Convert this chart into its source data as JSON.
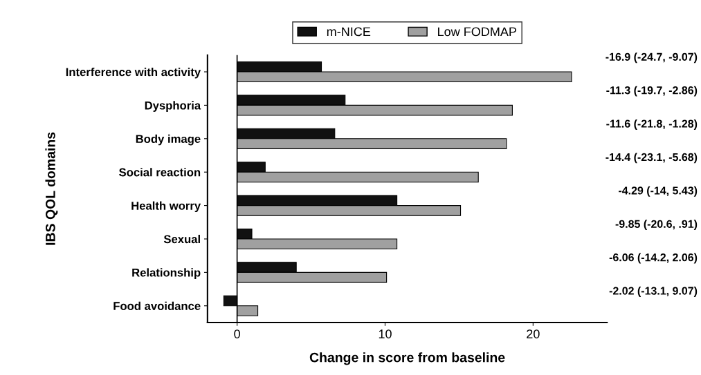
{
  "chart_data": {
    "type": "bar",
    "orientation": "horizontal",
    "xlabel": "Change in score from baseline",
    "ylabel": "IBS QOL domains",
    "categories": [
      "Interference with activity",
      "Dysphoria",
      "Body image",
      "Social reaction",
      "Health worry",
      "Sexual",
      "Relationship",
      "Food avoidance"
    ],
    "series": [
      {
        "name": "m-NICE",
        "color": "#111111",
        "values": [
          5.7,
          7.3,
          6.6,
          1.9,
          10.8,
          1.0,
          4.0,
          -0.9
        ]
      },
      {
        "name": "Low FODMAP",
        "color": "#a0a0a0",
        "values": [
          22.6,
          18.6,
          18.2,
          16.3,
          15.1,
          10.8,
          10.1,
          1.4
        ]
      }
    ],
    "ref_lines": [
      {
        "axis": "x",
        "value": 0,
        "color": "#000000",
        "line_style": "solid"
      }
    ],
    "xlim": [
      -2,
      25
    ],
    "xticks": [
      0,
      10,
      20
    ],
    "grid": false,
    "legend": "top",
    "annotations": [
      "-16.9 (-24.7, -9.07)",
      "-11.3 (-19.7, -2.86)",
      "-11.6 (-21.8, -1.28)",
      "-14.4 (-23.1, -5.68)",
      "-4.29 (-14, 5.43)",
      "-9.85 (-20.6, .91)",
      "-6.06 (-14.2, 2.06)",
      "-2.02 (-13.1, 9.07)"
    ]
  }
}
